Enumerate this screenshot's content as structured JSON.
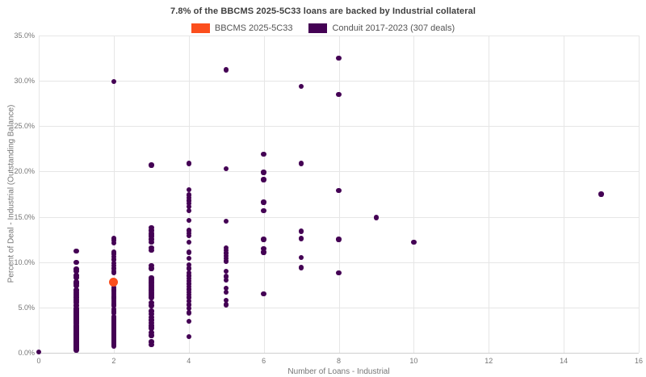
{
  "title": "7.8% of the BBCMS 2025-5C33 loans are backed by Industrial collateral",
  "legend": [
    {
      "name": "bbcms",
      "label": "BBCMS 2025-5C33",
      "color": "#fb4e1d"
    },
    {
      "name": "conduit",
      "label": "Conduit 2017-2023 (307 deals)",
      "color": "#440154"
    }
  ],
  "chart_data": {
    "type": "scatter",
    "title": "7.8% of the BBCMS 2025-5C33 loans are backed by Industrial collateral",
    "xlabel": "Number of Loans - Industrial",
    "ylabel": "Percent of Deal - Industrial (Outstanding Balance)",
    "xlim": [
      0,
      16
    ],
    "ylim": [
      0,
      35
    ],
    "grid": true,
    "legend_position": "top-center",
    "x_ticks": [
      {
        "v": 0,
        "label": "0"
      },
      {
        "v": 2,
        "label": "2"
      },
      {
        "v": 4,
        "label": "4"
      },
      {
        "v": 6,
        "label": "6"
      },
      {
        "v": 8,
        "label": "8"
      },
      {
        "v": 10,
        "label": "10"
      },
      {
        "v": 12,
        "label": "12"
      },
      {
        "v": 14,
        "label": "14"
      },
      {
        "v": 16,
        "label": "16"
      }
    ],
    "y_ticks": [
      {
        "v": 0,
        "label": "0.0%"
      },
      {
        "v": 5,
        "label": "5.0%"
      },
      {
        "v": 10,
        "label": "10.0%"
      },
      {
        "v": 15,
        "label": "15.0%"
      },
      {
        "v": 20,
        "label": "20.0%"
      },
      {
        "v": 25,
        "label": "25.0%"
      },
      {
        "v": 30,
        "label": "30.0%"
      },
      {
        "v": 35,
        "label": "35.0%"
      }
    ],
    "series": [
      {
        "name": "Conduit 2017-2023 (307 deals)",
        "color": "#440154",
        "marker_radius": 3.2,
        "columns": [
          {
            "x": 0,
            "ys": [
              0.1
            ]
          },
          {
            "x": 1,
            "ys": [
              11.2,
              10.0,
              9.2,
              9.0,
              8.5,
              8.3,
              7.8,
              7.6,
              7.4,
              6.9,
              6.7,
              6.5,
              6.3,
              6.1,
              5.9,
              5.7,
              5.5,
              5.2,
              4.9,
              4.8,
              4.7,
              4.6,
              4.5,
              4.4,
              4.3,
              4.2,
              4.1,
              4.0,
              3.9,
              3.8,
              3.7,
              3.6,
              3.5,
              3.4,
              3.3,
              3.2,
              3.0,
              2.9,
              2.8,
              2.7,
              2.6,
              2.5,
              2.4,
              2.3,
              2.2,
              2.1,
              2.0,
              1.9,
              1.8,
              1.7,
              1.6,
              1.5,
              1.4,
              1.3,
              1.2,
              1.1,
              1.0,
              0.9,
              0.8,
              0.7,
              0.6,
              0.5,
              0.4,
              0.3
            ]
          },
          {
            "x": 2,
            "ys": [
              29.9,
              12.6,
              12.4,
              12.1,
              11.1,
              10.9,
              10.6,
              10.3,
              9.9,
              9.6,
              9.3,
              9.0,
              8.8,
              7.2,
              7.0,
              6.8,
              6.6,
              6.4,
              6.2,
              6.0,
              5.8,
              5.6,
              5.4,
              5.2,
              4.8,
              4.6,
              4.4,
              4.0,
              3.9,
              3.8,
              3.7,
              3.6,
              3.5,
              3.4,
              3.3,
              3.2,
              3.1,
              3.0,
              2.9,
              2.8,
              2.7,
              2.6,
              2.5,
              2.4,
              2.3,
              2.2,
              2.1,
              2.0,
              1.9,
              1.8,
              1.7,
              1.6,
              1.5,
              1.4,
              1.3,
              1.2,
              1.1,
              1.0,
              0.9,
              0.8,
              0.7
            ]
          },
          {
            "x": 3,
            "ys": [
              20.7,
              13.8,
              13.5,
              13.2,
              13.0,
              12.8,
              12.5,
              12.2,
              11.6,
              11.3,
              9.6,
              9.3,
              8.3,
              8.1,
              7.9,
              7.7,
              7.5,
              7.3,
              7.1,
              6.9,
              6.7,
              6.5,
              6.3,
              6.1,
              5.5,
              5.2,
              4.6,
              4.3,
              3.9,
              3.6,
              3.3,
              3.0,
              2.7,
              2.2,
              1.9,
              1.2,
              0.9
            ]
          },
          {
            "x": 4,
            "ys": [
              20.9,
              18.0,
              17.4,
              17.1,
              16.8,
              16.5,
              16.1,
              15.7,
              14.6,
              13.5,
              13.2,
              12.9,
              12.2,
              11.1,
              10.4,
              9.7,
              9.3,
              8.8,
              8.5,
              8.2,
              7.9,
              7.6,
              7.3,
              7.0,
              6.7,
              6.4,
              6.1,
              5.7,
              5.3,
              4.9,
              4.4,
              3.5,
              1.8
            ]
          },
          {
            "x": 5,
            "ys": [
              31.2,
              20.3,
              14.5,
              11.6,
              11.3,
              11.0,
              10.7,
              10.4,
              10.1,
              9.0,
              8.4,
              8.0,
              7.1,
              6.7,
              5.8,
              5.3
            ]
          },
          {
            "x": 6,
            "ys": [
              21.9,
              19.9,
              19.1,
              16.6,
              15.7,
              12.5,
              11.5,
              11.1,
              6.5
            ]
          },
          {
            "x": 7,
            "ys": [
              29.4,
              20.9,
              13.4,
              12.6,
              10.5,
              9.4
            ]
          },
          {
            "x": 8,
            "ys": [
              32.5,
              28.5,
              17.9,
              12.5,
              8.8
            ]
          },
          {
            "x": 9,
            "ys": [
              14.9
            ]
          },
          {
            "x": 10,
            "ys": [
              12.2
            ]
          },
          {
            "x": 15,
            "ys": [
              17.5
            ]
          }
        ]
      },
      {
        "name": "BBCMS 2025-5C33",
        "color": "#fb4e1d",
        "marker_radius": 5.5,
        "columns": [
          {
            "x": 2,
            "ys": [
              7.8
            ]
          }
        ]
      }
    ]
  }
}
